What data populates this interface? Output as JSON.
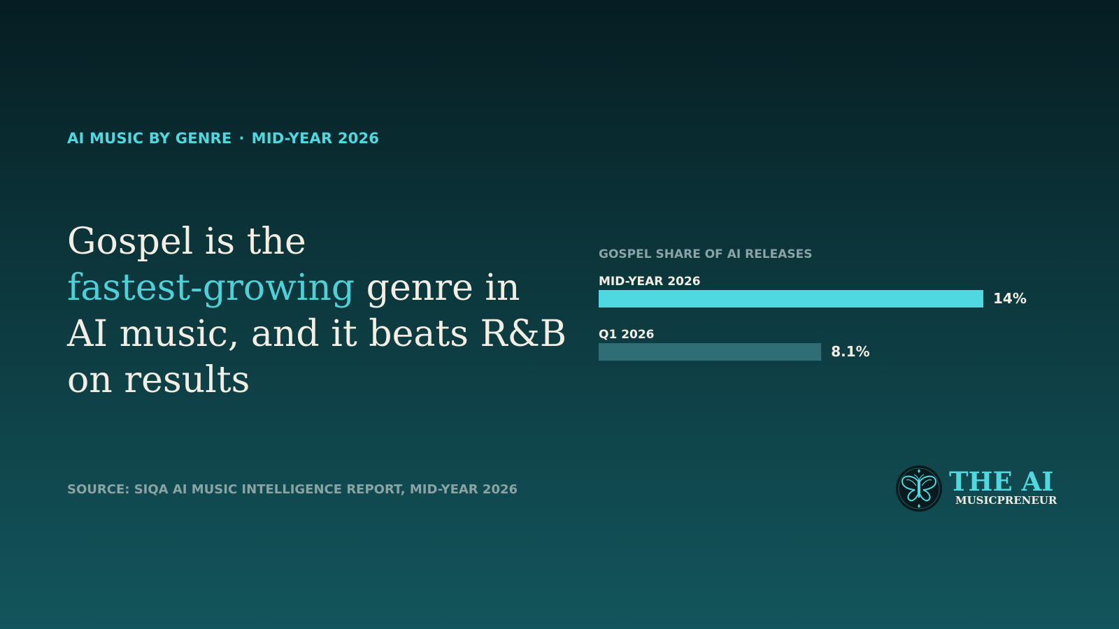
{
  "header": {
    "eyebrow_left": "AI MUSIC BY GENRE",
    "eyebrow_separator": "·",
    "eyebrow_right": "MID-YEAR 2026"
  },
  "headline": {
    "part1": "Gospel is the",
    "accent": "fastest-growing",
    "part2": " genre in AI music, and it beats R&B on results"
  },
  "source": "SOURCE: SIQA AI MUSIC INTELLIGENCE REPORT, MID-YEAR 2026",
  "logo": {
    "title": "THE AI",
    "subtitle": "MUSICPRENEUR",
    "icon": "butterfly-icon"
  },
  "colors": {
    "accent": "#4fd8e0",
    "bar_primary": "#4fd8e0",
    "bar_secondary": "#2f6e75",
    "text_light": "#f3eee3",
    "text_muted": "#8aa3a5"
  },
  "chart_data": {
    "type": "bar",
    "orientation": "horizontal",
    "title": "GOSPEL SHARE OF AI RELEASES",
    "categories": [
      "MID-YEAR 2026",
      "Q1 2026"
    ],
    "values": [
      14,
      8.1
    ],
    "value_labels": [
      "14%",
      "8.1%"
    ],
    "unit": "%",
    "xlim": [
      0,
      14
    ],
    "grid": false,
    "legend": "none"
  }
}
